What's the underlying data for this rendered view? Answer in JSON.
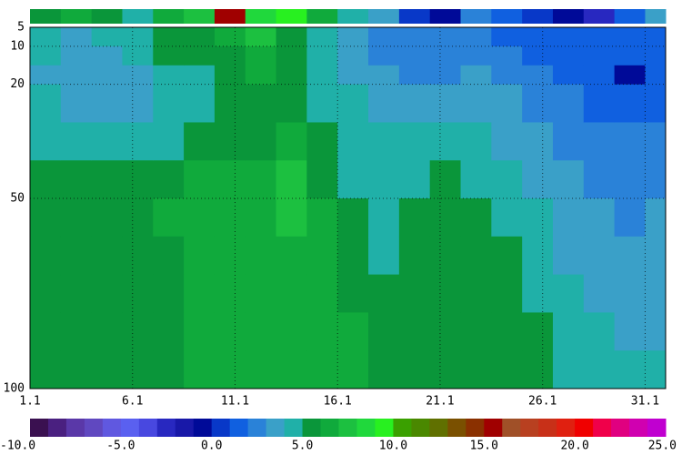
{
  "chart_data": {
    "type": "heatmap",
    "x_edges": [
      1,
      2.5,
      4,
      5.5,
      7,
      8.5,
      10,
      11.5,
      13,
      14.5,
      16,
      17.5,
      19,
      20.5,
      22,
      23.5,
      25,
      26.5,
      28,
      29.5,
      31,
      32
    ],
    "depth_edges": [
      5,
      10,
      15,
      20,
      30,
      40,
      50,
      60,
      70,
      80,
      90,
      100
    ],
    "z": [
      [
        4.5,
        4.5,
        3.5,
        4.5,
        4.5,
        5.5,
        5.5,
        5.5,
        5.5,
        5.5,
        5.5
      ],
      [
        3.5,
        3.5,
        3.5,
        3.5,
        4.5,
        5.5,
        5.5,
        5.5,
        5.5,
        5.5,
        5.5
      ],
      [
        4.5,
        3.5,
        3.5,
        3.5,
        4.5,
        5.5,
        5.5,
        5.5,
        5.5,
        5.5,
        5.5
      ],
      [
        4.5,
        4.5,
        3.5,
        3.5,
        4.5,
        5.5,
        5.5,
        5.5,
        5.5,
        5.5,
        5.5
      ],
      [
        5.5,
        5.5,
        4.5,
        4.5,
        4.5,
        5.5,
        6.5,
        5.5,
        5.5,
        5.5,
        5.5
      ],
      [
        5.5,
        5.5,
        4.5,
        4.5,
        5.5,
        6.5,
        6.5,
        6.5,
        6.5,
        6.5,
        6.5
      ],
      [
        6.5,
        5.5,
        5.5,
        5.5,
        5.5,
        6.5,
        6.5,
        6.5,
        6.5,
        6.5,
        6.5
      ],
      [
        7.5,
        6.5,
        6.5,
        5.5,
        5.5,
        6.5,
        6.5,
        6.5,
        6.5,
        6.5,
        6.5
      ],
      [
        5.5,
        5.5,
        5.5,
        5.5,
        6.5,
        7.5,
        7.5,
        6.5,
        6.5,
        6.5,
        6.5
      ],
      [
        4.5,
        4.5,
        4.5,
        4.5,
        5.5,
        5.5,
        6.5,
        6.5,
        6.5,
        6.5,
        6.5
      ],
      [
        3.5,
        3.5,
        3.5,
        4.5,
        4.5,
        4.5,
        5.5,
        5.5,
        5.5,
        6.5,
        6.5
      ],
      [
        2.5,
        2.5,
        3.5,
        3.5,
        4.5,
        4.5,
        4.5,
        4.5,
        5.5,
        5.5,
        5.5
      ],
      [
        2.5,
        2.5,
        2.5,
        3.5,
        4.5,
        4.5,
        5.5,
        5.5,
        5.5,
        5.5,
        5.5
      ],
      [
        2.5,
        2.5,
        2.5,
        3.5,
        4.5,
        5.5,
        5.5,
        5.5,
        5.5,
        5.5,
        5.5
      ],
      [
        2.5,
        2.5,
        3.5,
        3.5,
        4.5,
        4.5,
        5.5,
        5.5,
        5.5,
        5.5,
        5.5
      ],
      [
        1.5,
        2.5,
        2.5,
        3.5,
        3.5,
        4.5,
        4.5,
        5.5,
        5.5,
        5.5,
        5.5
      ],
      [
        1.5,
        1.5,
        2.5,
        2.5,
        3.5,
        3.5,
        4.5,
        4.5,
        4.5,
        5.5,
        5.5
      ],
      [
        1.5,
        1.5,
        1.5,
        2.5,
        2.5,
        3.5,
        3.5,
        3.5,
        4.5,
        4.5,
        4.5
      ],
      [
        1.5,
        1.5,
        1.5,
        1.5,
        2.5,
        2.5,
        3.5,
        3.5,
        3.5,
        4.5,
        4.5
      ],
      [
        1.5,
        1.5,
        -0.5,
        1.5,
        2.5,
        2.5,
        2.5,
        3.5,
        3.5,
        3.5,
        4.5
      ],
      [
        1.5,
        1.5,
        1.5,
        1.5,
        2.5,
        2.5,
        3.5,
        3.5,
        3.5,
        3.5,
        4.5
      ]
    ],
    "strip_values": [
      5.5,
      6.5,
      5.5,
      4.5,
      6.5,
      7.5,
      15.5,
      8.5,
      9.5,
      6.5,
      4.5,
      3.5,
      0.5,
      -0.5,
      2.5,
      1.5,
      0.5,
      -0.5,
      -2.5,
      1.5,
      3.5
    ],
    "colors": [
      "#3a1050",
      "#4a2080",
      "#5a38a8",
      "#6048c0",
      "#6058e0",
      "#5a60f0",
      "#4848e0",
      "#2828c0",
      "#1818a8",
      "#000a98",
      "#0838c8",
      "#1060e0",
      "#2a82d8",
      "#3aa0c8",
      "#20b0a8",
      "#0a963a",
      "#10aa3c",
      "#1cc040",
      "#20d83c",
      "#28f020",
      "#3aa000",
      "#4a8800",
      "#607000",
      "#7a5000",
      "#8a3000",
      "#a00000",
      "#a05028",
      "#b84020",
      "#c83018",
      "#e02010",
      "#f00000",
      "#f0004a",
      "#e00080",
      "#d000b0",
      "#c000d0"
    ],
    "clim": [
      -10,
      25
    ],
    "cticks": [
      {
        "value": -10,
        "label": "-10.0"
      },
      {
        "value": -5,
        "label": "-5.0"
      },
      {
        "value": 0,
        "label": "0.0"
      },
      {
        "value": 5,
        "label": "5.0"
      },
      {
        "value": 10,
        "label": "10.0"
      },
      {
        "value": 15,
        "label": "15.0"
      },
      {
        "value": 20,
        "label": "20.0"
      },
      {
        "value": 25,
        "label": "25.0"
      }
    ],
    "xlim": [
      1,
      32
    ],
    "ylim": [
      5,
      100
    ],
    "xticks": [
      {
        "value": 1,
        "label": "1.1"
      },
      {
        "value": 6,
        "label": "6.1"
      },
      {
        "value": 11,
        "label": "11.1"
      },
      {
        "value": 16,
        "label": "16.1"
      },
      {
        "value": 21,
        "label": "21.1"
      },
      {
        "value": 26,
        "label": "26.1"
      },
      {
        "value": 31,
        "label": "31.1"
      }
    ],
    "yticks": [
      5,
      10,
      20,
      50,
      100
    ],
    "grid": true
  }
}
